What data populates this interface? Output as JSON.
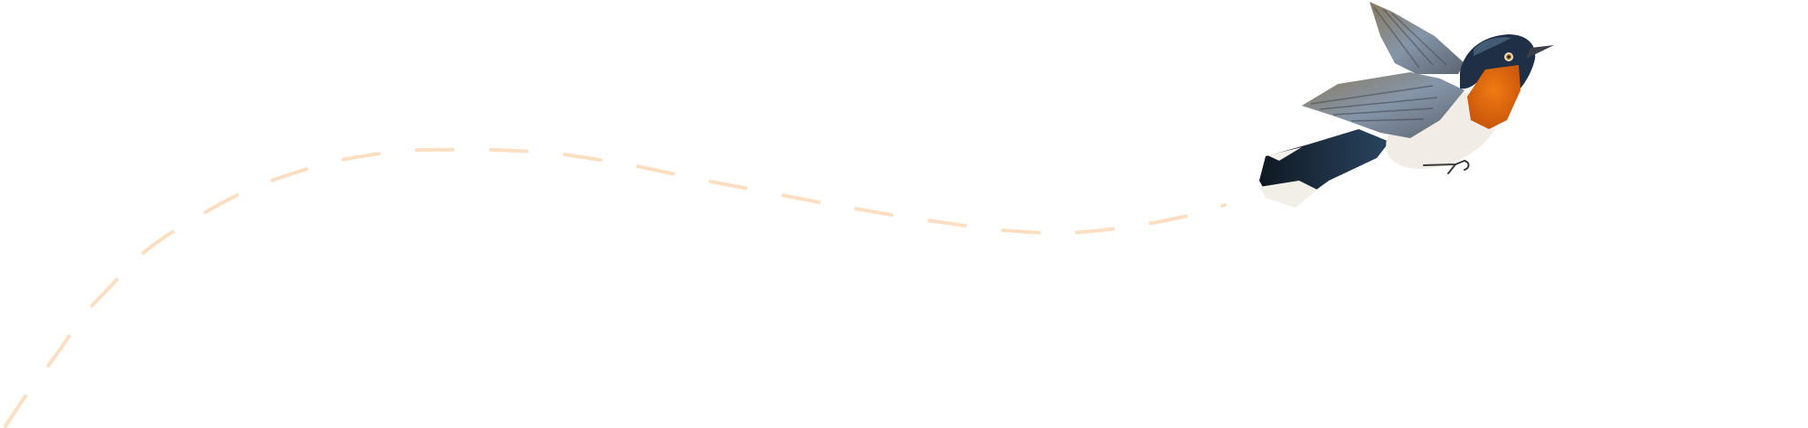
{
  "illustration": {
    "subject": "bird-icon",
    "flight_path": "dashed-curve",
    "colors": {
      "background": "#ffffff",
      "path": "#fcdfc3",
      "throat": "#e8700f",
      "head": "#1f2f45",
      "wing": "#7d8590",
      "belly": "#f1ede6",
      "tail": "#15202e"
    }
  }
}
